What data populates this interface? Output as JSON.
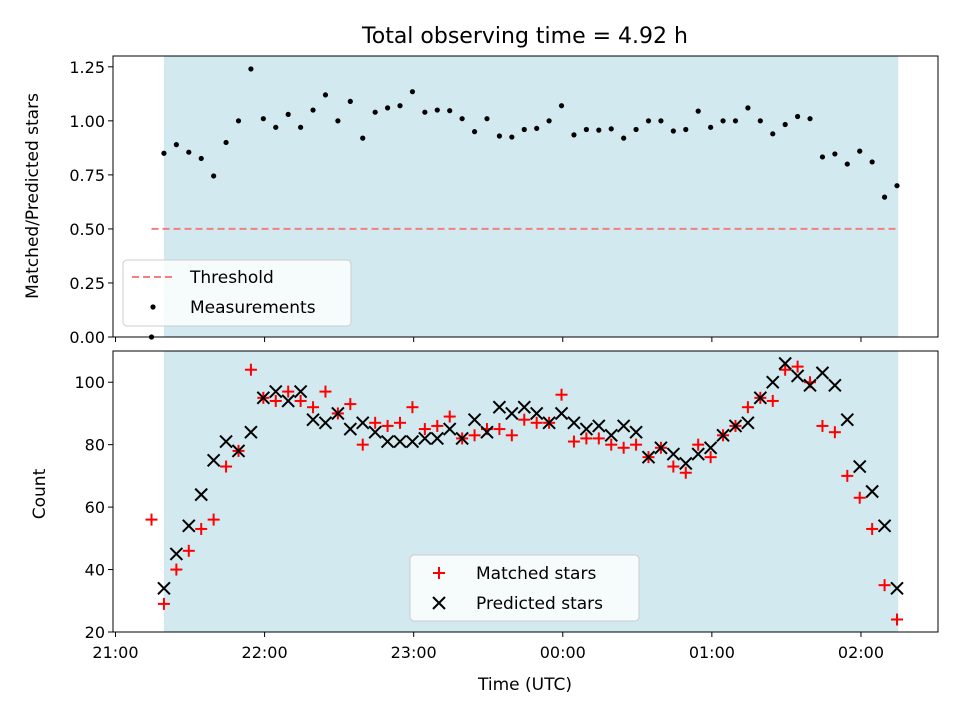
{
  "chart_data": [
    {
      "type": "scatter",
      "title": "Total observing time = 4.92 h",
      "xlabel": "",
      "ylabel": "Matched/Predicted stars",
      "ylim": [
        0.0,
        1.3
      ],
      "xlim_minutes_since_21h": [
        -1.0,
        331.0
      ],
      "yticks": [
        "0.00",
        "0.25",
        "0.50",
        "0.75",
        "1.00",
        "1.25"
      ],
      "observing_window_minutes": [
        19.5,
        315.0
      ],
      "shade_color": "#d2e9ef",
      "threshold": {
        "name": "Threshold",
        "y": 0.5,
        "x_range": [
          14.5,
          315.0
        ],
        "color": "#f08080",
        "style": "dashed"
      },
      "series": [
        {
          "name": "Measurements",
          "color": "#000000",
          "x": [
            14.5,
            19.5,
            24.5,
            29.5,
            34.5,
            39.5,
            44.5,
            49.5,
            54.5,
            59.5,
            64.5,
            69.5,
            74.5,
            79.5,
            84.5,
            89.5,
            94.5,
            99.5,
            104.5,
            109.5,
            114.5,
            119.5,
            124.5,
            129.5,
            134.5,
            139.5,
            144.5,
            149.5,
            154.5,
            159.5,
            164.5,
            169.5,
            174.5,
            179.5,
            184.5,
            189.5,
            194.5,
            199.5,
            204.5,
            209.5,
            214.5,
            219.5,
            224.5,
            229.5,
            234.5,
            239.5,
            244.5,
            249.5,
            254.5,
            259.5,
            264.5,
            269.5,
            274.5,
            279.5,
            284.5,
            289.5,
            294.5,
            299.5,
            304.5,
            309.5,
            314.5
          ],
          "y": [
            0.0,
            0.85,
            0.89,
            0.855,
            0.826,
            0.745,
            0.9,
            1.0,
            1.24,
            1.01,
            0.97,
            1.03,
            0.97,
            1.05,
            1.12,
            1.0,
            1.09,
            0.92,
            1.04,
            1.06,
            1.07,
            1.135,
            1.04,
            1.05,
            1.047,
            1.01,
            0.95,
            1.01,
            0.93,
            0.925,
            0.96,
            0.965,
            1.0,
            1.07,
            0.935,
            0.96,
            0.957,
            0.963,
            0.92,
            0.96,
            1.0,
            1.0,
            0.953,
            0.96,
            1.045,
            0.97,
            1.0,
            1.0,
            1.06,
            1.0,
            0.94,
            0.983,
            1.02,
            1.01,
            0.833,
            0.847,
            0.8,
            0.86,
            0.81,
            0.647,
            0.7
          ]
        }
      ],
      "legend_position": "lower-left"
    },
    {
      "type": "scatter",
      "title": "",
      "xlabel": "Time (UTC)",
      "ylabel": "Count",
      "ylim": [
        20,
        110
      ],
      "xlim_minutes_since_21h": [
        -1.0,
        331.0
      ],
      "xtick_labels": [
        "21:00",
        "22:00",
        "23:00",
        "00:00",
        "01:00",
        "02:00"
      ],
      "xtick_minutes_since_21h": [
        0,
        60,
        120,
        180,
        240,
        300
      ],
      "yticks": [
        "20",
        "40",
        "60",
        "80",
        "100"
      ],
      "observing_window_minutes": [
        19.5,
        315.0
      ],
      "shade_color": "#d2e9ef",
      "series": [
        {
          "name": "Matched stars",
          "marker": "+",
          "color": "#ff0000",
          "x": [
            14.5,
            19.5,
            24.5,
            29.5,
            34.5,
            39.5,
            44.5,
            49.5,
            54.5,
            59.5,
            64.5,
            69.5,
            74.5,
            79.5,
            84.5,
            89.5,
            94.5,
            99.5,
            104.5,
            109.5,
            114.5,
            119.5,
            124.5,
            129.5,
            134.5,
            139.5,
            144.5,
            149.5,
            154.5,
            159.5,
            164.5,
            169.5,
            174.5,
            179.5,
            184.5,
            189.5,
            194.5,
            199.5,
            204.5,
            209.5,
            214.5,
            219.5,
            224.5,
            229.5,
            234.5,
            239.5,
            244.5,
            249.5,
            254.5,
            259.5,
            264.5,
            269.5,
            274.5,
            279.5,
            284.5,
            289.5,
            294.5,
            299.5,
            304.5,
            309.5,
            314.5
          ],
          "y": [
            56,
            29,
            40,
            46,
            53,
            56,
            73,
            78,
            104,
            95,
            94,
            97,
            94,
            92,
            97,
            90,
            93,
            80,
            87,
            86,
            87,
            92,
            85,
            86,
            89,
            82,
            83,
            85,
            85,
            83,
            88,
            87,
            87,
            96,
            81,
            82,
            82,
            80,
            79,
            80,
            76,
            79,
            73,
            71,
            80,
            76,
            83,
            86,
            92,
            95,
            94,
            104,
            105,
            100,
            86,
            84,
            70,
            63,
            53,
            35,
            24
          ]
        },
        {
          "name": "Predicted stars",
          "marker": "x",
          "color": "#000000",
          "x": [
            19.5,
            24.5,
            29.5,
            34.5,
            39.5,
            44.5,
            49.5,
            54.5,
            59.5,
            64.5,
            69.5,
            74.5,
            79.5,
            84.5,
            89.5,
            94.5,
            99.5,
            104.5,
            109.5,
            114.5,
            119.5,
            124.5,
            129.5,
            134.5,
            139.5,
            144.5,
            149.5,
            154.5,
            159.5,
            164.5,
            169.5,
            174.5,
            179.5,
            184.5,
            189.5,
            194.5,
            199.5,
            204.5,
            209.5,
            214.5,
            219.5,
            224.5,
            229.5,
            234.5,
            239.5,
            244.5,
            249.5,
            254.5,
            259.5,
            264.5,
            269.5,
            274.5,
            279.5,
            284.5,
            289.5,
            294.5,
            299.5,
            304.5,
            309.5,
            314.5
          ],
          "y": [
            34,
            45,
            54,
            64,
            75,
            81,
            78,
            84,
            95,
            97,
            94,
            97,
            88,
            87,
            90,
            85,
            87,
            84,
            81,
            81,
            81,
            82,
            82,
            85,
            82,
            88,
            84,
            92,
            90,
            92,
            90,
            87,
            90,
            87,
            85,
            86,
            83,
            86,
            84,
            76,
            79,
            77,
            74,
            77,
            79,
            83,
            86,
            87,
            95,
            100,
            106,
            102,
            99,
            103,
            99,
            88,
            73,
            65,
            54,
            34
          ]
        }
      ],
      "legend_position": "lower-center"
    }
  ]
}
